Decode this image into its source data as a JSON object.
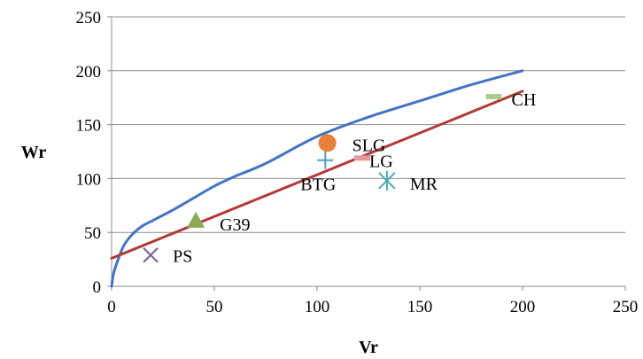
{
  "chart_data": {
    "type": "scatter",
    "xlabel": "Vr",
    "ylabel": "Wr",
    "xlim": [
      0,
      250
    ],
    "ylim": [
      0,
      250
    ],
    "xticks": [
      0,
      50,
      100,
      150,
      200,
      250
    ],
    "yticks": [
      0,
      50,
      100,
      150,
      200,
      250
    ],
    "x_tick_labels": [
      "0",
      "50",
      "100",
      "150",
      "200",
      "250"
    ],
    "y_tick_labels": [
      "0",
      "50",
      "100",
      "150",
      "200",
      "250"
    ],
    "grid": "horizontal",
    "legend": "none",
    "points": [
      {
        "label": "PS",
        "x": 19,
        "y": 29,
        "marker": "x",
        "color": "#7B5E9B"
      },
      {
        "label": "G39",
        "x": 41,
        "y": 61,
        "marker": "triangle",
        "color": "#8CAA55"
      },
      {
        "label": "BTG",
        "x": 104,
        "y": 117,
        "marker": "plus",
        "color": "#4F9FC7"
      },
      {
        "label": "SLG",
        "x": 105,
        "y": 133,
        "marker": "circle",
        "color": "#E8803A"
      },
      {
        "label": "LG",
        "x": 122,
        "y": 119,
        "marker": "dash",
        "color": "#E39A9A"
      },
      {
        "label": "MR",
        "x": 134,
        "y": 98,
        "marker": "asterisk",
        "color": "#4AACB0"
      },
      {
        "label": "CH",
        "x": 186,
        "y": 176,
        "marker": "dash",
        "color": "#A9CE8C"
      }
    ],
    "lines": [
      {
        "kind": "curve",
        "color": "#4472C4",
        "x": [
          0,
          1,
          3,
          6,
          10,
          15,
          20,
          30,
          40,
          50,
          60,
          75,
          100,
          125,
          150,
          175,
          200
        ],
        "y": [
          0,
          12,
          24,
          38,
          48,
          56,
          61,
          71,
          82,
          93,
          102,
          114,
          139,
          157,
          172,
          187,
          200
        ]
      },
      {
        "kind": "straight",
        "color": "#B03A37",
        "x": [
          0,
          200
        ],
        "y": [
          26,
          181
        ]
      }
    ]
  }
}
